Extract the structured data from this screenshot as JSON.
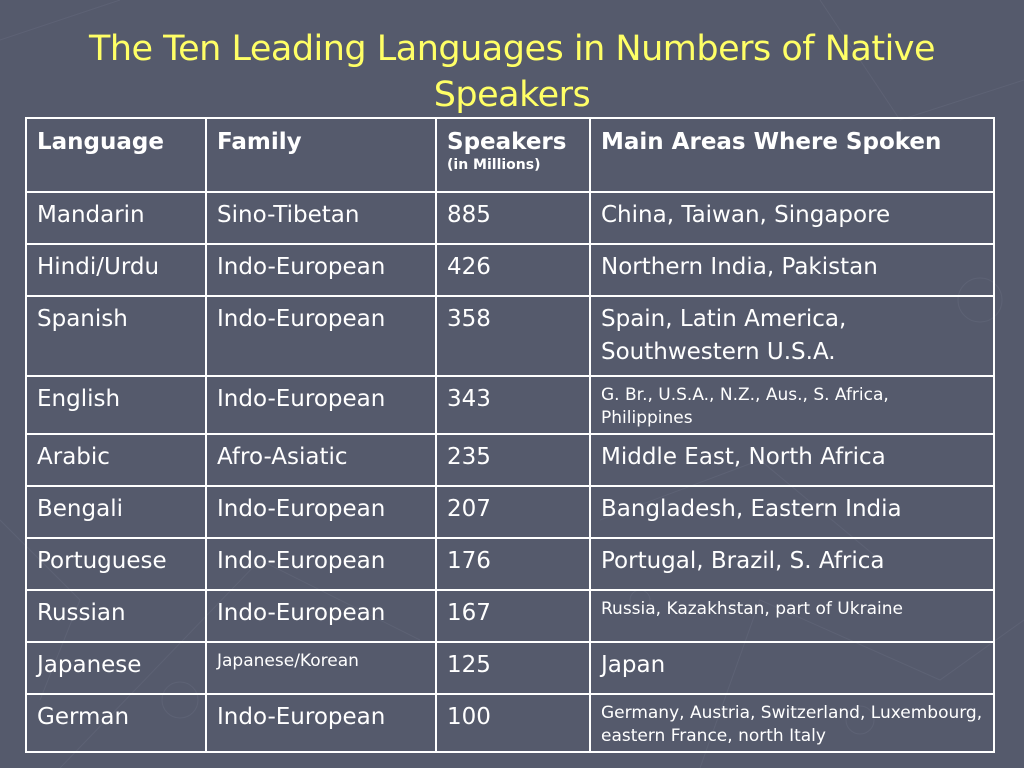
{
  "title": {
    "line1": "The Ten Leading Languages in Numbers of Native",
    "line2": "Speakers"
  },
  "table": {
    "headers": {
      "language": "Language",
      "family": "Family",
      "speakers": "Speakers",
      "speakers_sub": "(in Millions)",
      "areas": "Main Areas Where Spoken"
    },
    "rows": [
      {
        "language": "Mandarin",
        "family": "Sino-Tibetan",
        "speakers": "885",
        "areas": "China, Taiwan, Singapore"
      },
      {
        "language": "Hindi/Urdu",
        "family": "Indo-European",
        "speakers": "426",
        "areas": "Northern India, Pakistan"
      },
      {
        "language": "Spanish",
        "family": "Indo-European",
        "speakers": "358",
        "areas": "Spain, Latin America, Southwestern U.S.A."
      },
      {
        "language": "English",
        "family": "Indo-European",
        "speakers": "343",
        "areas": "G. Br., U.S.A., N.Z., Aus., S. Africa, Philippines"
      },
      {
        "language": "Arabic",
        "family": "Afro-Asiatic",
        "speakers": "235",
        "areas": "Middle East, North Africa"
      },
      {
        "language": "Bengali",
        "family": "Indo-European",
        "speakers": "207",
        "areas": "Bangladesh, Eastern India"
      },
      {
        "language": "Portuguese",
        "family": "Indo-European",
        "speakers": "176",
        "areas": "Portugal, Brazil, S. Africa"
      },
      {
        "language": "Russian",
        "family": "Indo-European",
        "speakers": "167",
        "areas": "Russia, Kazakhstan, part of Ukraine"
      },
      {
        "language": "Japanese",
        "family": "Japanese/Korean",
        "speakers": "125",
        "areas": "Japan"
      },
      {
        "language": "German",
        "family": "Indo-European",
        "speakers": "100",
        "areas": "Germany, Austria, Switzerland, Luxembourg, eastern France, north Italy"
      }
    ]
  },
  "colors": {
    "background": "#555a6c",
    "title": "#ffff66",
    "text": "#ffffff",
    "border": "#ffffff"
  }
}
